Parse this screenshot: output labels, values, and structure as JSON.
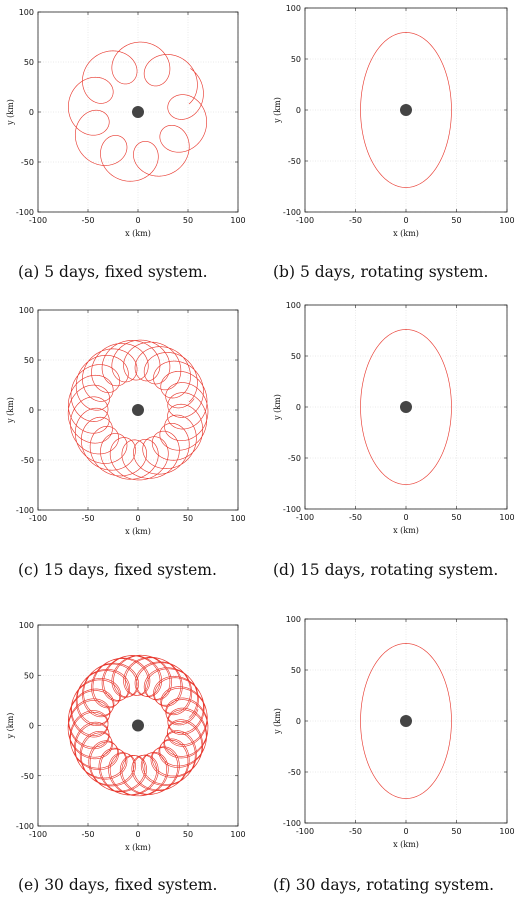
{
  "panels": [
    {
      "id": "a",
      "caption": "(a) 5 days, fixed system."
    },
    {
      "id": "b",
      "caption": "(b) 5 days, rotating system."
    },
    {
      "id": "c",
      "caption": "(c) 15 days, fixed system."
    },
    {
      "id": "d",
      "caption": "(d) 15 days, rotating system."
    },
    {
      "id": "e",
      "caption": "(e) 30 days, fixed system."
    },
    {
      "id": "f",
      "caption": "(f) 30 days, rotating system."
    }
  ],
  "chart_data": [
    {
      "type": "line",
      "panel": "a",
      "xlabel": "x (km)",
      "ylabel": "y (km)",
      "xlim": [
        -100,
        100
      ],
      "ylim": [
        -100,
        100
      ],
      "xticks": [
        -100,
        -50,
        0,
        50,
        100
      ],
      "yticks": [
        -100,
        -50,
        0,
        50,
        100
      ],
      "grid": true,
      "line_color": "#e8392f",
      "center_color": "#444444",
      "series": [
        {
          "kind": "epicycloid",
          "days": 5,
          "center": [
            0,
            0
          ],
          "mean_radius": 50,
          "loop_radius": 20
        }
      ],
      "central_body": {
        "x": 0,
        "y": 0
      }
    },
    {
      "type": "line",
      "panel": "b",
      "xlabel": "x (km)",
      "ylabel": "y (km)",
      "xlim": [
        -100,
        100
      ],
      "ylim": [
        -100,
        100
      ],
      "xticks": [
        -100,
        -50,
        0,
        50,
        100
      ],
      "yticks": [
        -100,
        -50,
        0,
        50,
        100
      ],
      "grid": true,
      "line_color": "#e8392f",
      "center_color": "#444444",
      "series": [
        {
          "kind": "ellipse",
          "days": 5,
          "center": [
            0,
            0
          ],
          "semi_x": 45,
          "semi_y": 76
        }
      ],
      "central_body": {
        "x": 0,
        "y": 0
      }
    },
    {
      "type": "line",
      "panel": "c",
      "xlabel": "x (km)",
      "ylabel": "y (km)",
      "xlim": [
        -100,
        100
      ],
      "ylim": [
        -100,
        100
      ],
      "xticks": [
        -100,
        -50,
        0,
        50,
        100
      ],
      "yticks": [
        -100,
        -50,
        0,
        50,
        100
      ],
      "grid": true,
      "line_color": "#e8392f",
      "center_color": "#444444",
      "series": [
        {
          "kind": "epicycloid",
          "days": 15,
          "center": [
            0,
            0
          ],
          "mean_radius": 50,
          "loop_radius": 20
        }
      ],
      "central_body": {
        "x": 0,
        "y": 0
      }
    },
    {
      "type": "line",
      "panel": "d",
      "xlabel": "x (km)",
      "ylabel": "y (km)",
      "xlim": [
        -100,
        100
      ],
      "ylim": [
        -100,
        100
      ],
      "xticks": [
        -100,
        -50,
        0,
        50,
        100
      ],
      "yticks": [
        -100,
        -50,
        0,
        50,
        100
      ],
      "grid": true,
      "line_color": "#e8392f",
      "center_color": "#444444",
      "series": [
        {
          "kind": "ellipse",
          "days": 15,
          "center": [
            0,
            0
          ],
          "semi_x": 45,
          "semi_y": 76
        }
      ],
      "central_body": {
        "x": 0,
        "y": 0
      }
    },
    {
      "type": "line",
      "panel": "e",
      "xlabel": "x (km)",
      "ylabel": "y (km)",
      "xlim": [
        -100,
        100
      ],
      "ylim": [
        -100,
        100
      ],
      "xticks": [
        -100,
        -50,
        0,
        50,
        100
      ],
      "yticks": [
        -100,
        -50,
        0,
        50,
        100
      ],
      "grid": true,
      "line_color": "#e8392f",
      "center_color": "#444444",
      "series": [
        {
          "kind": "epicycloid",
          "days": 30,
          "center": [
            0,
            0
          ],
          "mean_radius": 50,
          "loop_radius": 20
        }
      ],
      "central_body": {
        "x": 0,
        "y": 0
      }
    },
    {
      "type": "line",
      "panel": "f",
      "xlabel": "x (km)",
      "ylabel": "y (km)",
      "xlim": [
        -100,
        100
      ],
      "ylim": [
        -100,
        100
      ],
      "xticks": [
        -100,
        -50,
        0,
        50,
        100
      ],
      "yticks": [
        -100,
        -50,
        0,
        50,
        100
      ],
      "grid": true,
      "line_color": "#e8392f",
      "center_color": "#444444",
      "series": [
        {
          "kind": "ellipse",
          "days": 30,
          "center": [
            0,
            0
          ],
          "semi_x": 45,
          "semi_y": 76
        }
      ],
      "central_body": {
        "x": 0,
        "y": 0
      }
    }
  ]
}
